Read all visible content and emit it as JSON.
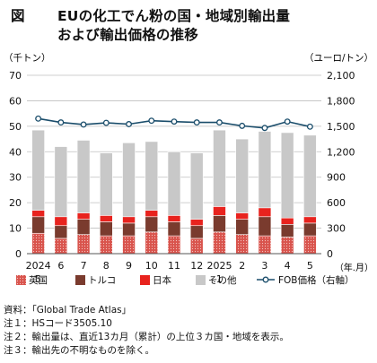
{
  "figure_label": "図",
  "title_line1": "EUの化工でん粉の国・地域別輸出量",
  "title_line2": "および輸出価格の推移",
  "notes": [
    "資料：「Global Trade Atlas」",
    "注１：HSコード3505.10",
    "注２：輸出量は、直近13カ月（累計）の上位３カ国・地域を表示。",
    "注３：輸出先の不明なものを除く。"
  ],
  "chart_data": {
    "type": "bar",
    "stacked": true,
    "y_left_label": "（千トン）",
    "y_right_label": "（ユーロ/トン）",
    "x_unit_label": "（年.月）",
    "ylim_left": [
      0,
      70
    ],
    "yticks_left": [
      "0",
      "10",
      "20",
      "30",
      "40",
      "50",
      "60",
      "70"
    ],
    "ylim_right": [
      0,
      2100
    ],
    "yticks_right": [
      "0",
      "300",
      "600",
      "900",
      "1,200",
      "1,500",
      "1,800",
      "2,100"
    ],
    "categories": [
      [
        "2024",
        ".5"
      ],
      [
        "6",
        ""
      ],
      [
        "7",
        ""
      ],
      [
        "8",
        ""
      ],
      [
        "9",
        ""
      ],
      [
        "10",
        ""
      ],
      [
        "11",
        ""
      ],
      [
        "12",
        ""
      ],
      [
        "2025",
        ".1"
      ],
      [
        "2",
        ""
      ],
      [
        "3",
        ""
      ],
      [
        "4",
        ""
      ],
      [
        "5",
        ""
      ]
    ],
    "series": [
      {
        "name": "英国",
        "color": "#d9544d",
        "pattern": "dots",
        "values": [
          8,
          6,
          7.5,
          7,
          7,
          8.5,
          7,
          6,
          8.5,
          7.5,
          7,
          6.5,
          7
        ]
      },
      {
        "name": "トルコ",
        "color": "#7a3b2e",
        "pattern": "solid",
        "values": [
          6.5,
          5,
          6,
          5.5,
          5,
          6,
          5.5,
          5,
          6.5,
          6,
          7.5,
          5,
          5
        ]
      },
      {
        "name": "日本",
        "color": "#e8231e",
        "pattern": "solid",
        "values": [
          2.5,
          3.5,
          2.5,
          2.5,
          2.5,
          2.5,
          2.5,
          2.5,
          3.5,
          2.5,
          3.5,
          2.5,
          2.5
        ]
      },
      {
        "name": "その他",
        "color": "#c8c8c8",
        "pattern": "solid",
        "values": [
          31.5,
          27.5,
          28.5,
          24.5,
          29,
          27,
          25,
          26,
          30,
          29,
          30,
          33.5,
          32
        ]
      }
    ],
    "line_series": {
      "name": "FOB価格（右軸）",
      "axis": "right",
      "color": "#1a4d6b",
      "values": [
        1590,
        1545,
        1520,
        1540,
        1525,
        1565,
        1555,
        1545,
        1545,
        1505,
        1480,
        1555,
        1495
      ]
    },
    "grid": true,
    "legend_position": "bottom"
  }
}
